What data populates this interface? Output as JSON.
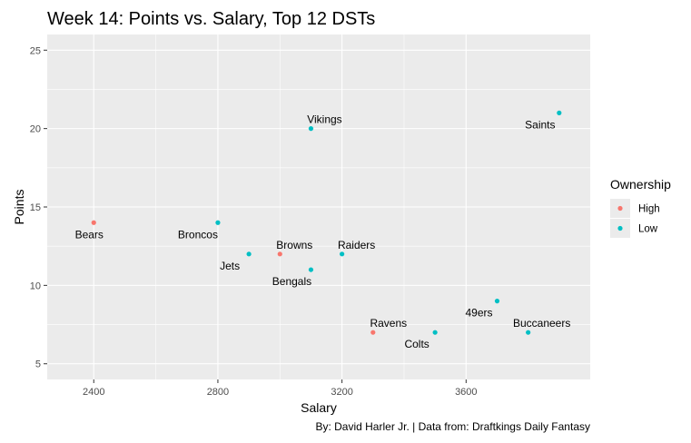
{
  "chart_data": {
    "type": "scatter",
    "title": "Week 14: Points vs. Salary, Top 12 DSTs",
    "xlabel": "Salary",
    "ylabel": "Points",
    "caption": "By: David Harler Jr. | Data from: Draftkings Daily Fantasy",
    "xlim": [
      2250,
      4000
    ],
    "ylim": [
      4,
      26
    ],
    "x_ticks": [
      2400,
      2800,
      3200,
      3600
    ],
    "y_ticks": [
      5,
      10,
      15,
      20,
      25
    ],
    "grid": true,
    "legend": {
      "title": "Ownership",
      "position": "right",
      "entries": [
        {
          "label": "High",
          "color": "#F8766D"
        },
        {
          "label": "Low",
          "color": "#00BFC4"
        }
      ]
    },
    "points": [
      {
        "label": "Bears",
        "x": 2400,
        "y": 14,
        "ownership": "High"
      },
      {
        "label": "Broncos",
        "x": 2800,
        "y": 14,
        "ownership": "Low"
      },
      {
        "label": "Jets",
        "x": 2900,
        "y": 12,
        "ownership": "Low"
      },
      {
        "label": "Browns",
        "x": 3000,
        "y": 12,
        "ownership": "High"
      },
      {
        "label": "Vikings",
        "x": 3100,
        "y": 20,
        "ownership": "Low"
      },
      {
        "label": "Bengals",
        "x": 3100,
        "y": 11,
        "ownership": "Low"
      },
      {
        "label": "Raiders",
        "x": 3200,
        "y": 12,
        "ownership": "Low"
      },
      {
        "label": "Ravens",
        "x": 3300,
        "y": 7,
        "ownership": "High"
      },
      {
        "label": "Colts",
        "x": 3500,
        "y": 7,
        "ownership": "Low"
      },
      {
        "label": "49ers",
        "x": 3700,
        "y": 9,
        "ownership": "Low"
      },
      {
        "label": "Buccaneers",
        "x": 3800,
        "y": 7,
        "ownership": "Low"
      },
      {
        "label": "Saints",
        "x": 3900,
        "y": 21,
        "ownership": "Low"
      }
    ]
  }
}
